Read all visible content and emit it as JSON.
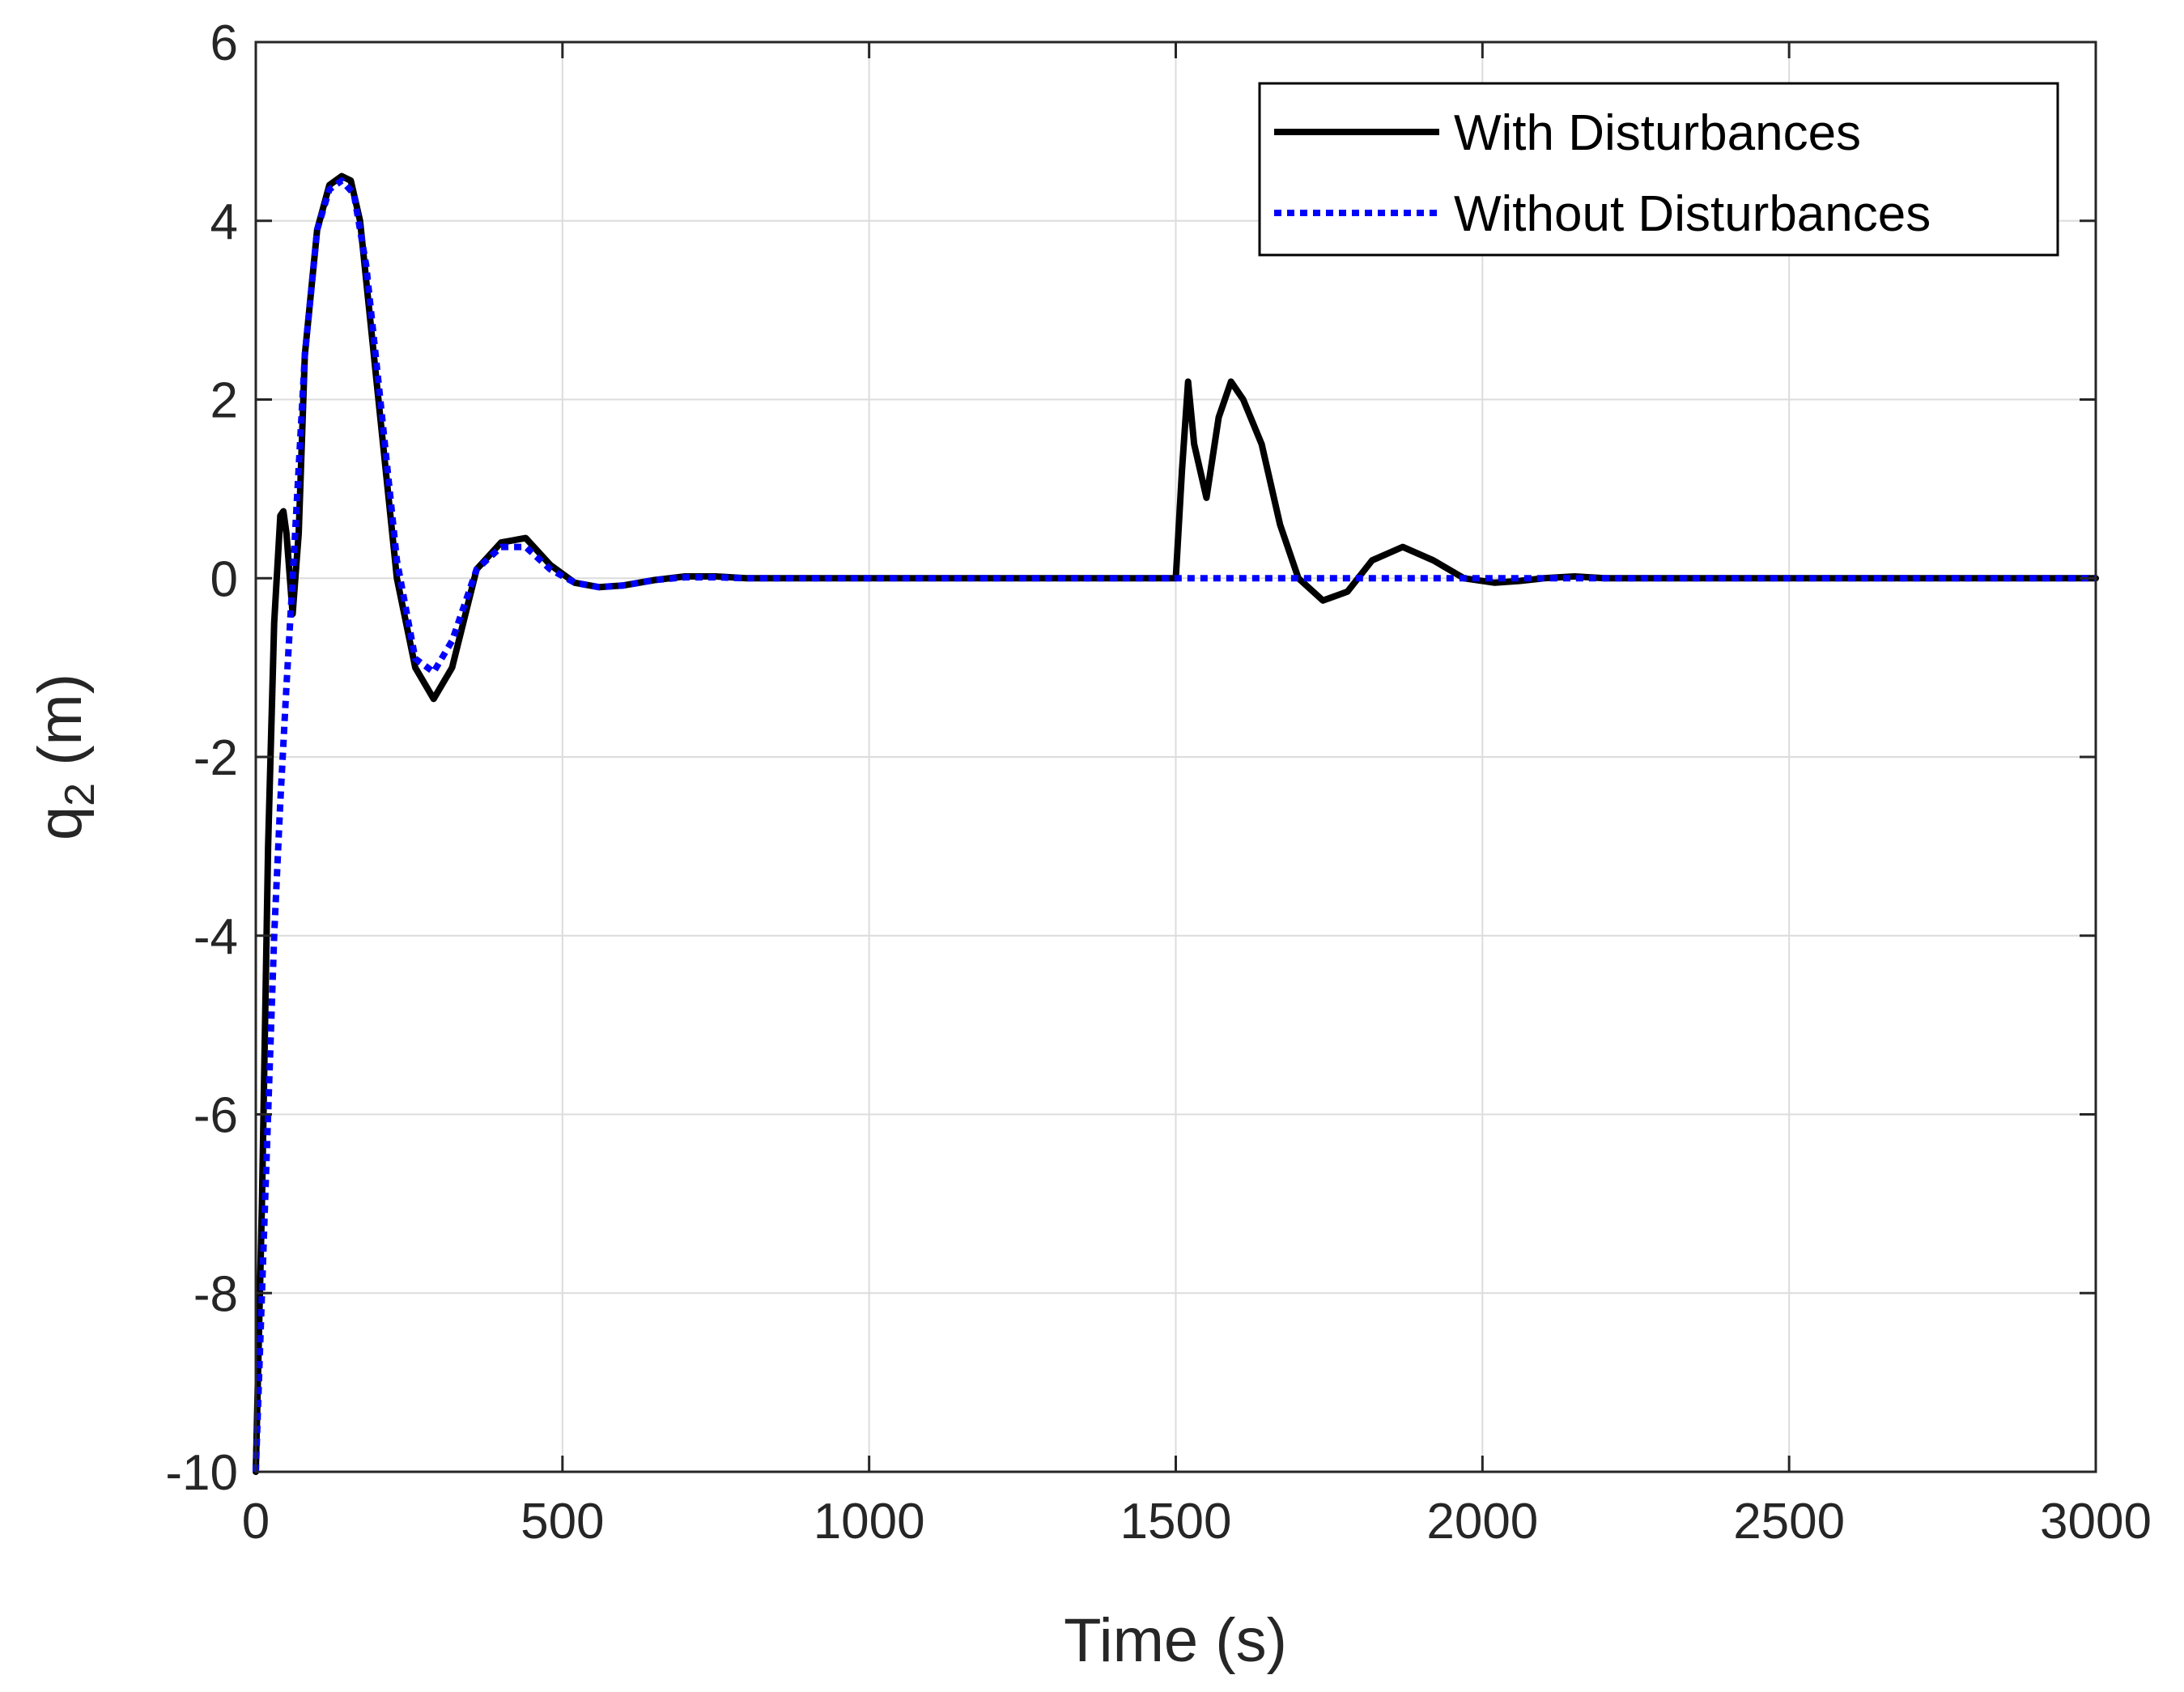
{
  "chart_data": {
    "type": "line",
    "xlabel": "Time (s)",
    "ylabel": {
      "base": "q",
      "subscript": "2",
      "suffix": " (m)"
    },
    "xlim": [
      0,
      3000
    ],
    "ylim": [
      -10,
      6
    ],
    "x_ticks": [
      0,
      500,
      1000,
      1500,
      2000,
      2500,
      3000
    ],
    "y_ticks": [
      -10,
      -8,
      -6,
      -4,
      -2,
      0,
      2,
      4,
      6
    ],
    "x_tick_labels": [
      "0",
      "500",
      "1000",
      "1500",
      "2000",
      "2500",
      "3000"
    ],
    "y_tick_labels": [
      "-10",
      "-8",
      "-6",
      "-4",
      "-2",
      "0",
      "2",
      "4",
      "6"
    ],
    "grid": true,
    "legend_position": "top-right",
    "series": [
      {
        "name": "With Disturbances",
        "color": "#000000",
        "style": "solid",
        "x": [
          0,
          10,
          20,
          30,
          40,
          45,
          50,
          60,
          70,
          80,
          100,
          120,
          140,
          155,
          170,
          200,
          230,
          260,
          290,
          320,
          360,
          400,
          440,
          480,
          520,
          560,
          600,
          650,
          700,
          750,
          800,
          900,
          1000,
          1200,
          1400,
          1500,
          1510,
          1520,
          1530,
          1550,
          1570,
          1590,
          1610,
          1640,
          1670,
          1700,
          1740,
          1780,
          1820,
          1870,
          1920,
          1970,
          2020,
          2060,
          2100,
          2150,
          2200,
          2300,
          2500,
          3000
        ],
        "y": [
          -10,
          -7,
          -3,
          -0.5,
          0.7,
          0.75,
          0.5,
          -0.4,
          0.5,
          2.5,
          3.9,
          4.4,
          4.5,
          4.45,
          4.0,
          2.0,
          0.0,
          -1.0,
          -1.35,
          -1.0,
          0.1,
          0.4,
          0.45,
          0.15,
          -0.05,
          -0.1,
          -0.08,
          -0.02,
          0.02,
          0.02,
          0.0,
          0.0,
          0.0,
          0.0,
          0.0,
          0.0,
          1.2,
          2.2,
          1.5,
          0.9,
          1.8,
          2.2,
          2.0,
          1.5,
          0.6,
          0.0,
          -0.25,
          -0.15,
          0.2,
          0.35,
          0.2,
          0.0,
          -0.05,
          -0.03,
          0.0,
          0.02,
          0.0,
          0.0,
          0.0,
          0.0
        ]
      },
      {
        "name": "Without Disturbances",
        "color": "#0000ff",
        "style": "dotted",
        "x": [
          0,
          10,
          20,
          30,
          40,
          50,
          60,
          80,
          100,
          120,
          140,
          160,
          180,
          200,
          230,
          260,
          290,
          320,
          360,
          400,
          440,
          480,
          520,
          560,
          600,
          650,
          700,
          750,
          800,
          900,
          1000,
          1500,
          2000,
          2500,
          3000
        ],
        "y": [
          -10,
          -8,
          -6,
          -4,
          -2.5,
          -1.2,
          0.0,
          2.5,
          3.9,
          4.35,
          4.45,
          4.3,
          3.5,
          2.2,
          0.2,
          -0.9,
          -1.05,
          -0.7,
          0.1,
          0.35,
          0.35,
          0.1,
          -0.05,
          -0.1,
          -0.08,
          -0.02,
          0.01,
          0.01,
          0.0,
          0.0,
          0.0,
          0.0,
          0.0,
          0.0,
          0.0
        ]
      }
    ]
  }
}
